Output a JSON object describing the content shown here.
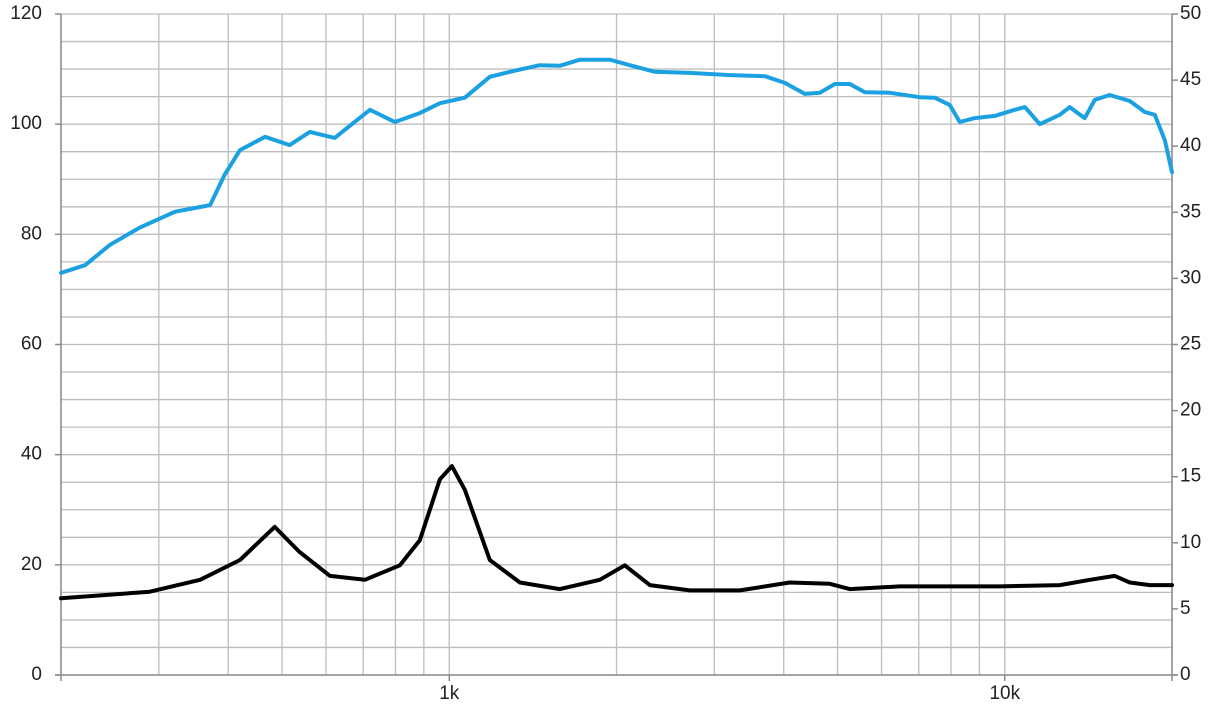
{
  "chart_data": {
    "type": "line",
    "xscale": "log",
    "grid": true,
    "xlim": [
      200,
      20000
    ],
    "xticks": [
      {
        "value": 1000,
        "label": "1k"
      },
      {
        "value": 10000,
        "label": "10k"
      }
    ],
    "xgrid": [
      200,
      300,
      400,
      500,
      600,
      700,
      800,
      900,
      1000,
      2000,
      3000,
      4000,
      5000,
      6000,
      7000,
      8000,
      9000,
      10000,
      20000
    ],
    "ylim": [
      0,
      120
    ],
    "yticks": [
      0,
      20,
      40,
      60,
      80,
      100,
      120
    ],
    "ygrid": [
      0,
      5,
      10,
      15,
      20,
      25,
      30,
      35,
      40,
      45,
      50,
      55,
      60,
      65,
      70,
      75,
      80,
      85,
      90,
      95,
      100,
      105,
      110,
      115,
      120
    ],
    "y2lim": [
      0,
      50
    ],
    "y2ticks": [
      0,
      5,
      10,
      15,
      20,
      25,
      30,
      35,
      40,
      45,
      50
    ],
    "series": [
      {
        "color": "#1ba1e2",
        "x": [
          200,
          221,
          245,
          277,
          321,
          371,
          394,
          420,
          466,
          516,
          561,
          622,
          662,
          720,
          798,
          885,
          962,
          1067,
          1183,
          1312,
          1455,
          1581,
          1718,
          1945,
          2113,
          2344,
          2710,
          3200,
          3700,
          4020,
          4365,
          4645,
          4943,
          5260,
          5600,
          6210,
          7030,
          7480,
          7960,
          8300,
          8830,
          9590,
          10420,
          10870,
          11560,
          12560,
          13090,
          13930,
          14520,
          15450,
          16790,
          17870,
          18620,
          19410,
          20000
        ],
        "values": [
          73.0,
          74.4,
          78.1,
          81.2,
          84.1,
          85.3,
          90.8,
          95.3,
          97.7,
          96.2,
          98.6,
          97.5,
          99.7,
          102.6,
          100.4,
          102.0,
          103.8,
          104.8,
          108.6,
          109.7,
          110.7,
          110.6,
          111.7,
          111.7,
          110.7,
          109.5,
          109.3,
          108.9,
          108.7,
          107.5,
          105.5,
          105.7,
          107.3,
          107.3,
          105.8,
          105.7,
          104.9,
          104.8,
          103.5,
          100.4,
          101.1,
          101.5,
          102.6,
          103.1,
          100.0,
          101.7,
          103.1,
          101.1,
          104.4,
          105.3,
          104.2,
          102.2,
          101.7,
          97.1,
          91.3
        ]
      },
      {
        "color": "#000000",
        "axis": "y2",
        "x": [
          200,
          289,
          356,
          420,
          485,
          538,
          610,
          705,
          815,
          885,
          962,
          1011,
          1067,
          1183,
          1340,
          1581,
          1866,
          2070,
          2296,
          2710,
          3335,
          4100,
          4840,
          5260,
          6470,
          7960,
          9800,
          12560,
          14230,
          15780,
          16790,
          18240,
          20000
        ],
        "values": [
          5.8,
          6.3,
          7.2,
          8.7,
          11.2,
          9.3,
          7.5,
          7.2,
          8.3,
          10.2,
          14.8,
          15.8,
          14.0,
          8.7,
          7.0,
          6.5,
          7.2,
          8.3,
          6.8,
          6.4,
          6.4,
          7.0,
          6.9,
          6.5,
          6.7,
          6.7,
          6.7,
          6.8,
          7.2,
          7.5,
          7.0,
          6.8,
          6.8
        ]
      }
    ]
  }
}
